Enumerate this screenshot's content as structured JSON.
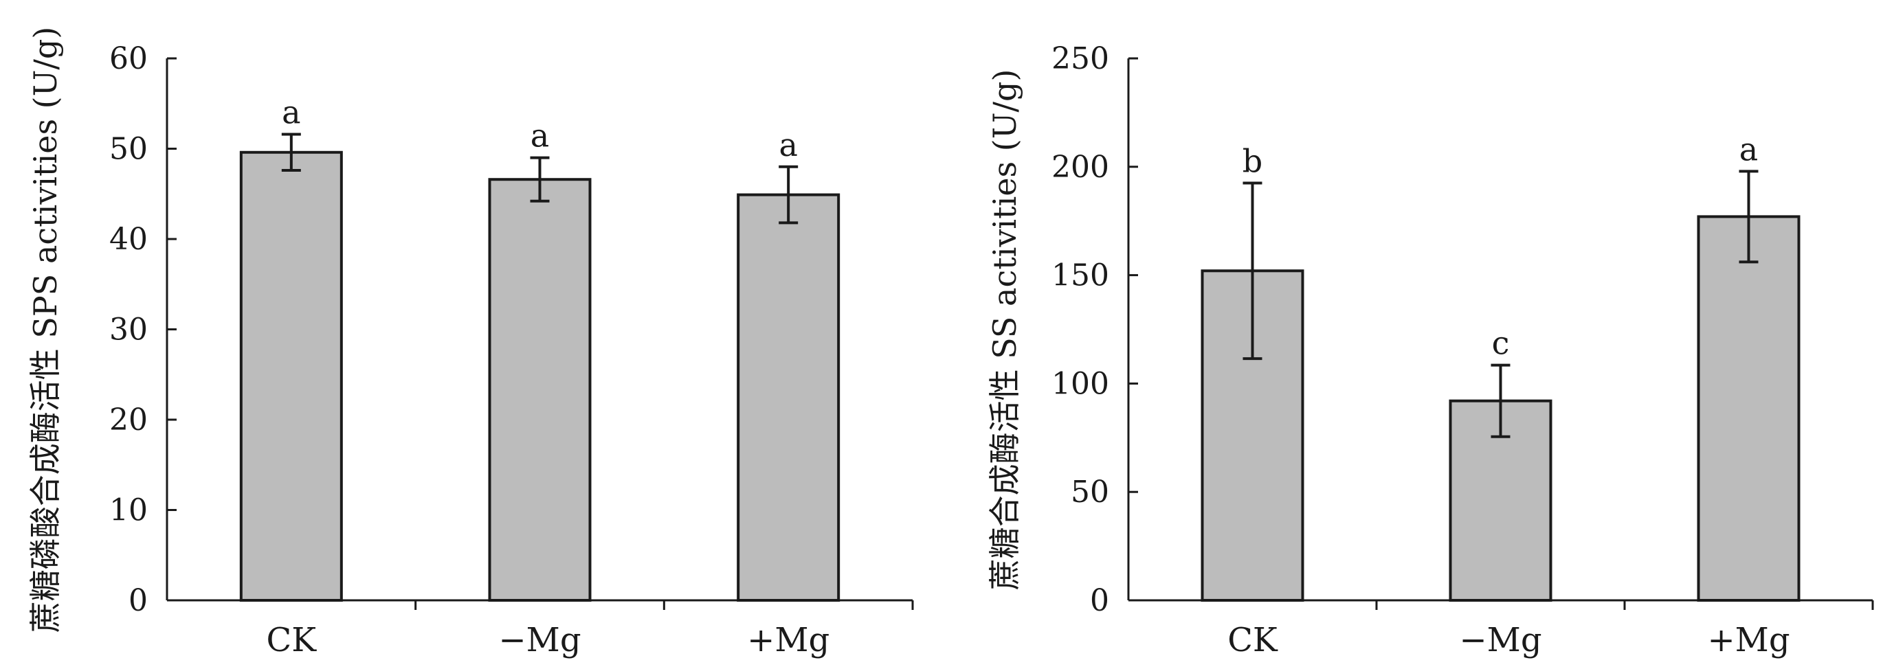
{
  "chart_data": [
    {
      "type": "bar",
      "categories": [
        "CK",
        "−Mg",
        "+Mg"
      ],
      "values": [
        49.6,
        46.6,
        44.9
      ],
      "errors": [
        2.0,
        2.4,
        3.1
      ],
      "significance": [
        "a",
        "a",
        "a"
      ],
      "ylabel": "蔗糖磷酸合成酶活性  SPS activities (U/g)",
      "ylim": [
        0,
        60
      ],
      "yticks": [
        0,
        10,
        20,
        30,
        40,
        50,
        60
      ],
      "grid": false,
      "bar_color": "#bcbcbc"
    },
    {
      "type": "bar",
      "categories": [
        "CK",
        "−Mg",
        "+Mg"
      ],
      "values": [
        152,
        92,
        177
      ],
      "errors": [
        40.5,
        16.5,
        20.9
      ],
      "significance": [
        "b",
        "c",
        "a"
      ],
      "ylabel": "蔗糖合成酶活性 SS activities (U/g)",
      "ylim": [
        0,
        250
      ],
      "yticks": [
        0,
        50,
        100,
        150,
        200,
        250
      ],
      "grid": false,
      "bar_color": "#bcbcbc"
    }
  ]
}
